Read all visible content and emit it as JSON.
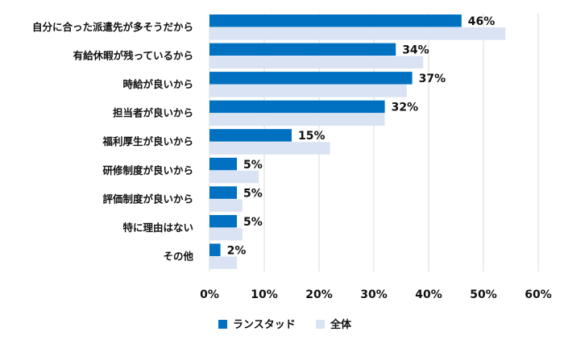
{
  "chart_data": {
    "type": "bar",
    "orientation": "horizontal",
    "categories": [
      "自分に合った派遣先が多そうだから",
      "有給休暇が残っているから",
      "時給が良いから",
      "担当者が良いから",
      "福利厚生が良いから",
      "研修制度が良いから",
      "評価制度が良いから",
      "特に理由はない",
      "その他"
    ],
    "series": [
      {
        "name": "ランスタッド",
        "color": "#0070c0",
        "values": [
          46,
          34,
          37,
          32,
          15,
          5,
          5,
          5,
          2
        ],
        "labels": [
          "46%",
          "34%",
          "37%",
          "32%",
          "15%",
          "5%",
          "5%",
          "5%",
          "2%"
        ]
      },
      {
        "name": "全体",
        "color": "#dae3f3",
        "values": [
          54,
          39,
          36,
          32,
          22,
          9,
          6,
          6,
          5
        ]
      }
    ],
    "xlim": [
      0,
      60
    ],
    "xticks": [
      "0%",
      "10%",
      "20%",
      "30%",
      "40%",
      "50%",
      "60%"
    ],
    "grid": true,
    "legend": "bottom"
  }
}
